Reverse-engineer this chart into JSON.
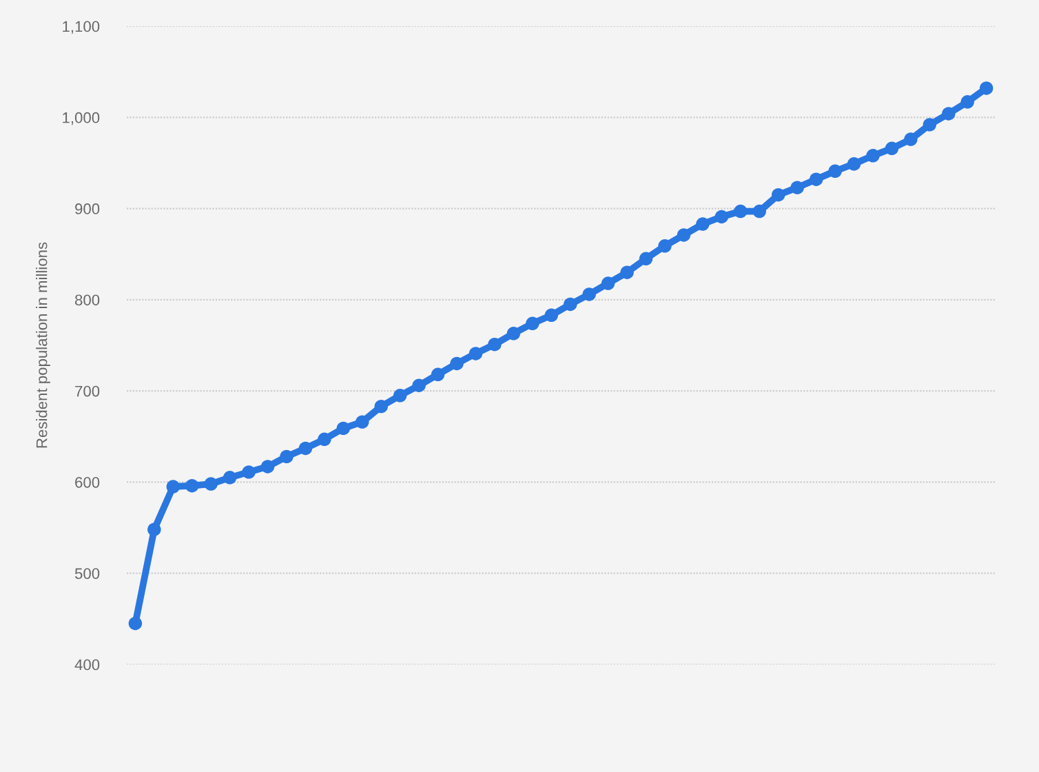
{
  "chart_data": {
    "type": "line",
    "ylabel": "Resident population in millions",
    "categories": [
      null,
      null,
      null,
      null,
      null,
      null,
      null,
      null,
      null,
      null,
      null,
      null,
      null,
      null,
      null,
      null,
      null,
      null,
      null,
      null,
      null,
      null,
      null,
      null,
      null,
      null,
      null,
      null,
      null,
      null,
      null,
      null,
      null,
      null,
      null,
      null,
      null,
      null,
      null,
      null,
      null,
      null,
      null,
      null,
      null,
      null
    ],
    "series": [
      {
        "color": "#2a77e0",
        "values": [
          445,
          548,
          595,
          596,
          598,
          605,
          611,
          617,
          628,
          637,
          647,
          659,
          666,
          683,
          695,
          706,
          718,
          730,
          741,
          751,
          763,
          774,
          783,
          795,
          806,
          818,
          830,
          845,
          859,
          871,
          883,
          891,
          897,
          897,
          915,
          923,
          932,
          941,
          949,
          958,
          966,
          976,
          992,
          1004,
          1017,
          1032
        ]
      }
    ],
    "ylim": [
      400,
      1100
    ],
    "yticks": [
      400,
      500,
      600,
      700,
      800,
      900,
      {
        "value": 1000,
        "label": "1,000"
      },
      {
        "value": 1100,
        "label": "1,100"
      }
    ],
    "grid": "y",
    "marker": "circle",
    "line_style": "solid",
    "tick_labels": "y"
  }
}
